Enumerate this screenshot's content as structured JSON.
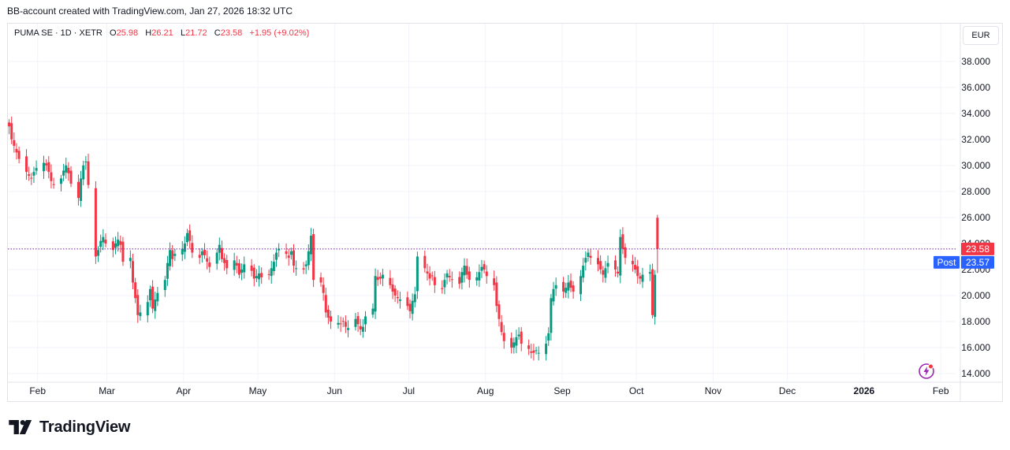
{
  "header": {
    "credit": "BB-account created with TradingView.com, Jan 27, 2026 18:32 UTC"
  },
  "legend": {
    "symbol": "PUMA SE · 1D · XETR",
    "o_label": "O",
    "o_value": "25.98",
    "h_label": "H",
    "h_value": "26.21",
    "l_label": "L",
    "l_value": "21.72",
    "c_label": "C",
    "c_value": "23.58",
    "change": "+1.95 (+9.02%)"
  },
  "currency_button": "EUR",
  "price_tags": {
    "last_label": "23.58",
    "post_tag": "Post",
    "post_value": "23.57"
  },
  "footer": {
    "logo_text": "TradingView"
  },
  "icons": {
    "logo": "tradingview-logo-icon",
    "flash": "flash-icon"
  },
  "colors": {
    "up": "#089981",
    "down": "#f23645",
    "post": "#2962ff",
    "dotted_line": "#7b1fa2"
  },
  "chart_data": {
    "type": "candlestick",
    "ylim": [
      13.4,
      39.2
    ],
    "y_ticks": [
      "14.000",
      "16.000",
      "18.000",
      "20.000",
      "22.000",
      "24.000",
      "26.000",
      "28.000",
      "30.000",
      "32.000",
      "34.000",
      "36.000",
      "38.000"
    ],
    "x_ticks": [
      {
        "label": "Feb",
        "date": "2025-02-01"
      },
      {
        "label": "Mar",
        "date": "2025-03-01"
      },
      {
        "label": "Apr",
        "date": "2025-04-01"
      },
      {
        "label": "May",
        "date": "2025-05-01"
      },
      {
        "label": "Jun",
        "date": "2025-06-01"
      },
      {
        "label": "Jul",
        "date": "2025-07-01"
      },
      {
        "label": "Aug",
        "date": "2025-08-01"
      },
      {
        "label": "Sep",
        "date": "2025-09-01"
      },
      {
        "label": "Oct",
        "date": "2025-10-01"
      },
      {
        "label": "Nov",
        "date": "2025-11-01"
      },
      {
        "label": "Dec",
        "date": "2025-12-01"
      },
      {
        "label": "2026",
        "date": "2026-01-01"
      },
      {
        "label": "Feb",
        "date": "2026-02-01"
      }
    ],
    "last_price": 23.58,
    "post_price": 23.57,
    "start_date": "2025-01-20",
    "closes": [
      33.0,
      32.0,
      31.5,
      31.0,
      30.5,
      29.5,
      29.2,
      29.0,
      29.5,
      29.8,
      30.2,
      30.0,
      29.5,
      28.8,
      28.5,
      29.0,
      29.6,
      30.0,
      29.4,
      28.6,
      27.5,
      29.0,
      30.0,
      30.3,
      28.5,
      23.0,
      23.5,
      24.2,
      24.5,
      24.0,
      23.5,
      24.0,
      24.3,
      23.9,
      22.6,
      22.9,
      21.0,
      19.8,
      18.5,
      18.7,
      19.5,
      20.5,
      19.0,
      19.7,
      20.2,
      21.2,
      22.5,
      23.5,
      22.8,
      23.2,
      23.6,
      24.0,
      24.8,
      24.2,
      23.3,
      22.9,
      23.4,
      23.1,
      22.6,
      22.2,
      23.3,
      23.9,
      22.8,
      22.5,
      22.1,
      22.7,
      22.3,
      21.6,
      22.0,
      22.4,
      21.9,
      21.3,
      21.5,
      21.7,
      21.4,
      21.6,
      22.1,
      22.6,
      23.3,
      23.6,
      23.2,
      22.9,
      23.4,
      22.3,
      22.1,
      22.0,
      22.4,
      23.4,
      24.6,
      21.2,
      21.0,
      20.2,
      18.7,
      18.3,
      18.0,
      17.9,
      17.8,
      18.0,
      17.6,
      17.5,
      18.2,
      17.8,
      17.4,
      17.6,
      18.4,
      19.0,
      21.5,
      21.2,
      21.3,
      21.6,
      20.8,
      20.3,
      20.0,
      19.8,
      19.7,
      19.2,
      18.8,
      19.6,
      20.1,
      23.0,
      22.1,
      21.7,
      21.3,
      21.5,
      20.8,
      20.5,
      21.2,
      21.7,
      21.4,
      21.2,
      20.9,
      21.8,
      22.3,
      21.6,
      21.2,
      21.4,
      21.8,
      22.2,
      22.0,
      21.5,
      20.8,
      19.2,
      18.2,
      17.2,
      16.5,
      16.0,
      16.4,
      16.8,
      17.0,
      16.3,
      15.9,
      15.6,
      15.6,
      15.8,
      15.6,
      16.3,
      17.1,
      19.8,
      20.5,
      20.8,
      20.3,
      20.6,
      21.0,
      20.6,
      20.3,
      21.5,
      22.3,
      22.9,
      23.3,
      22.9,
      22.4,
      22.0,
      21.6,
      22.1,
      22.5,
      22.0,
      21.7,
      24.5,
      23.6,
      22.9,
      22.4,
      22.0,
      21.5,
      21.3,
      21.6,
      21.8,
      18.5,
      21.6,
      23.58
    ]
  }
}
